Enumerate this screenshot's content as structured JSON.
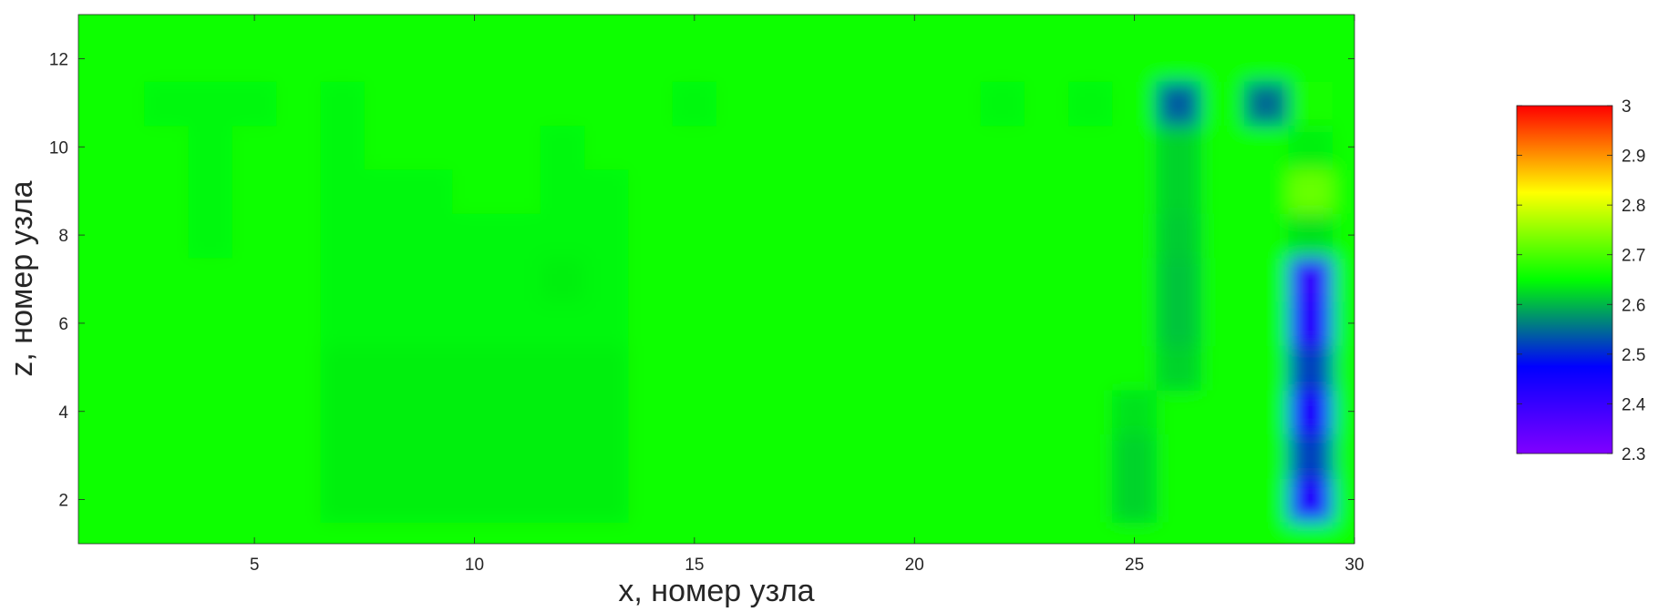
{
  "chart_data": {
    "type": "heatmap",
    "title": "",
    "xlabel": "x, номер узла",
    "ylabel": "z, номер узла",
    "xlim": [
      1,
      30
    ],
    "ylim": [
      1,
      13
    ],
    "xticks": [
      5,
      10,
      15,
      20,
      25,
      30
    ],
    "yticks": [
      2,
      4,
      6,
      8,
      10,
      12
    ],
    "colorbar": {
      "min": 2.3,
      "max": 3.0,
      "ticks": [
        2.3,
        2.4,
        2.5,
        2.6,
        2.7,
        2.8,
        2.9,
        3.0
      ],
      "tick_labels": [
        "2.3",
        "2.4",
        "2.5",
        "2.6",
        "2.7",
        "2.8",
        "2.9",
        "3"
      ],
      "colormap": [
        "#8000ff",
        "#0000ff",
        "#00ff00",
        "#ffff00",
        "#ff0000"
      ],
      "placement": "right"
    },
    "x": [
      1,
      2,
      3,
      4,
      5,
      6,
      7,
      8,
      9,
      10,
      11,
      12,
      13,
      14,
      15,
      16,
      17,
      18,
      19,
      20,
      21,
      22,
      23,
      24,
      25,
      26,
      27,
      28,
      29,
      30
    ],
    "y": [
      1,
      2,
      3,
      4,
      5,
      6,
      7,
      8,
      9,
      10,
      11,
      12,
      13
    ],
    "background_value": 2.655,
    "values": [
      [
        2.655,
        2.655,
        2.655,
        2.655,
        2.655,
        2.655,
        2.655,
        2.655,
        2.655,
        2.655,
        2.655,
        2.655,
        2.655,
        2.655,
        2.655,
        2.655,
        2.655,
        2.655,
        2.655,
        2.655,
        2.655,
        2.655,
        2.655,
        2.655,
        2.655,
        2.655,
        2.655,
        2.655,
        2.655,
        2.655
      ],
      [
        2.655,
        2.655,
        2.655,
        2.655,
        2.655,
        2.655,
        2.64,
        2.64,
        2.64,
        2.64,
        2.64,
        2.64,
        2.64,
        2.655,
        2.655,
        2.655,
        2.655,
        2.655,
        2.655,
        2.655,
        2.655,
        2.655,
        2.655,
        2.655,
        2.62,
        2.655,
        2.655,
        2.655,
        2.43,
        2.655
      ],
      [
        2.655,
        2.655,
        2.655,
        2.655,
        2.655,
        2.655,
        2.64,
        2.64,
        2.64,
        2.64,
        2.64,
        2.64,
        2.64,
        2.655,
        2.655,
        2.655,
        2.655,
        2.655,
        2.655,
        2.655,
        2.655,
        2.655,
        2.655,
        2.655,
        2.62,
        2.655,
        2.655,
        2.655,
        2.52,
        2.655
      ],
      [
        2.655,
        2.655,
        2.655,
        2.655,
        2.655,
        2.655,
        2.64,
        2.64,
        2.64,
        2.64,
        2.64,
        2.64,
        2.64,
        2.655,
        2.655,
        2.655,
        2.655,
        2.655,
        2.655,
        2.655,
        2.655,
        2.655,
        2.655,
        2.655,
        2.63,
        2.655,
        2.655,
        2.655,
        2.44,
        2.655
      ],
      [
        2.655,
        2.655,
        2.655,
        2.655,
        2.655,
        2.655,
        2.64,
        2.64,
        2.64,
        2.64,
        2.64,
        2.64,
        2.64,
        2.655,
        2.655,
        2.655,
        2.655,
        2.655,
        2.655,
        2.655,
        2.655,
        2.655,
        2.655,
        2.655,
        2.655,
        2.62,
        2.655,
        2.655,
        2.52,
        2.655
      ],
      [
        2.655,
        2.655,
        2.655,
        2.655,
        2.655,
        2.655,
        2.645,
        2.645,
        2.645,
        2.645,
        2.645,
        2.645,
        2.645,
        2.655,
        2.655,
        2.655,
        2.655,
        2.655,
        2.655,
        2.655,
        2.655,
        2.655,
        2.655,
        2.655,
        2.655,
        2.61,
        2.655,
        2.655,
        2.42,
        2.655
      ],
      [
        2.655,
        2.655,
        2.655,
        2.655,
        2.655,
        2.655,
        2.645,
        2.645,
        2.645,
        2.645,
        2.645,
        2.64,
        2.645,
        2.655,
        2.655,
        2.655,
        2.655,
        2.655,
        2.655,
        2.655,
        2.655,
        2.655,
        2.655,
        2.655,
        2.655,
        2.61,
        2.655,
        2.655,
        2.41,
        2.655
      ],
      [
        2.655,
        2.655,
        2.655,
        2.645,
        2.655,
        2.655,
        2.645,
        2.645,
        2.645,
        2.645,
        2.645,
        2.645,
        2.645,
        2.655,
        2.655,
        2.655,
        2.655,
        2.655,
        2.655,
        2.655,
        2.655,
        2.655,
        2.655,
        2.655,
        2.655,
        2.615,
        2.655,
        2.655,
        2.63,
        2.655
      ],
      [
        2.655,
        2.655,
        2.655,
        2.645,
        2.655,
        2.655,
        2.645,
        2.645,
        2.645,
        2.655,
        2.655,
        2.645,
        2.645,
        2.655,
        2.655,
        2.655,
        2.655,
        2.655,
        2.655,
        2.655,
        2.655,
        2.655,
        2.655,
        2.655,
        2.655,
        2.62,
        2.655,
        2.655,
        2.72,
        2.655
      ],
      [
        2.655,
        2.655,
        2.655,
        2.645,
        2.655,
        2.655,
        2.645,
        2.655,
        2.655,
        2.655,
        2.655,
        2.645,
        2.655,
        2.655,
        2.655,
        2.655,
        2.655,
        2.655,
        2.655,
        2.655,
        2.655,
        2.655,
        2.655,
        2.655,
        2.655,
        2.62,
        2.655,
        2.655,
        2.64,
        2.655
      ],
      [
        2.655,
        2.655,
        2.645,
        2.645,
        2.645,
        2.655,
        2.645,
        2.655,
        2.655,
        2.655,
        2.655,
        2.655,
        2.655,
        2.655,
        2.645,
        2.655,
        2.655,
        2.655,
        2.655,
        2.655,
        2.655,
        2.645,
        2.655,
        2.645,
        2.655,
        2.54,
        2.655,
        2.55,
        2.665,
        2.655
      ],
      [
        2.655,
        2.655,
        2.655,
        2.655,
        2.655,
        2.655,
        2.655,
        2.655,
        2.655,
        2.655,
        2.655,
        2.655,
        2.655,
        2.655,
        2.655,
        2.655,
        2.655,
        2.655,
        2.655,
        2.655,
        2.655,
        2.655,
        2.655,
        2.655,
        2.655,
        2.655,
        2.655,
        2.655,
        2.655,
        2.655
      ],
      [
        2.655,
        2.655,
        2.655,
        2.655,
        2.655,
        2.655,
        2.655,
        2.655,
        2.655,
        2.655,
        2.655,
        2.655,
        2.655,
        2.655,
        2.655,
        2.655,
        2.655,
        2.655,
        2.655,
        2.655,
        2.655,
        2.655,
        2.655,
        2.655,
        2.655,
        2.655,
        2.655,
        2.655,
        2.655,
        2.655
      ]
    ]
  }
}
